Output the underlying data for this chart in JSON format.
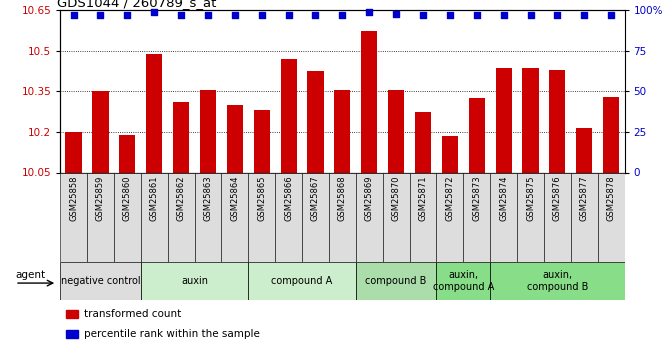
{
  "title": "GDS1044 / 260789_s_at",
  "samples": [
    "GSM25858",
    "GSM25859",
    "GSM25860",
    "GSM25861",
    "GSM25862",
    "GSM25863",
    "GSM25864",
    "GSM25865",
    "GSM25866",
    "GSM25867",
    "GSM25868",
    "GSM25869",
    "GSM25870",
    "GSM25871",
    "GSM25872",
    "GSM25873",
    "GSM25874",
    "GSM25875",
    "GSM25876",
    "GSM25877",
    "GSM25878"
  ],
  "bar_values": [
    10.2,
    10.35,
    10.19,
    10.49,
    10.31,
    10.355,
    10.3,
    10.28,
    10.47,
    10.425,
    10.355,
    10.575,
    10.355,
    10.275,
    10.185,
    10.325,
    10.435,
    10.435,
    10.43,
    10.215,
    10.33
  ],
  "dot_values": [
    97,
    97,
    97,
    99,
    97,
    97,
    97,
    97,
    97,
    97,
    97,
    99,
    98,
    97,
    97,
    97,
    97,
    97,
    97,
    97,
    97
  ],
  "bar_color": "#cc0000",
  "dot_color": "#0000cc",
  "ylim_left": [
    10.05,
    10.65
  ],
  "ylim_right": [
    0,
    100
  ],
  "yticks_left": [
    10.05,
    10.2,
    10.35,
    10.5,
    10.65
  ],
  "ytick_labels_left": [
    "10.05",
    "10.2",
    "10.35",
    "10.5",
    "10.65"
  ],
  "yticks_right": [
    0,
    25,
    50,
    75,
    100
  ],
  "ytick_labels_right": [
    "0",
    "25",
    "50",
    "75",
    "100%"
  ],
  "grid_values": [
    10.2,
    10.35,
    10.5
  ],
  "agent_groups": [
    {
      "label": "negative control",
      "start": 0,
      "end": 3,
      "color": "#dddddd"
    },
    {
      "label": "auxin",
      "start": 3,
      "end": 7,
      "color": "#cceecc"
    },
    {
      "label": "compound A",
      "start": 7,
      "end": 11,
      "color": "#cceecc"
    },
    {
      "label": "compound B",
      "start": 11,
      "end": 14,
      "color": "#aaddaa"
    },
    {
      "label": "auxin,\ncompound A",
      "start": 14,
      "end": 16,
      "color": "#88dd88"
    },
    {
      "label": "auxin,\ncompound B",
      "start": 16,
      "end": 21,
      "color": "#88dd88"
    }
  ],
  "legend_red_label": "transformed count",
  "legend_blue_label": "percentile rank within the sample",
  "agent_label": "agent",
  "xtick_bg": "#dddddd"
}
